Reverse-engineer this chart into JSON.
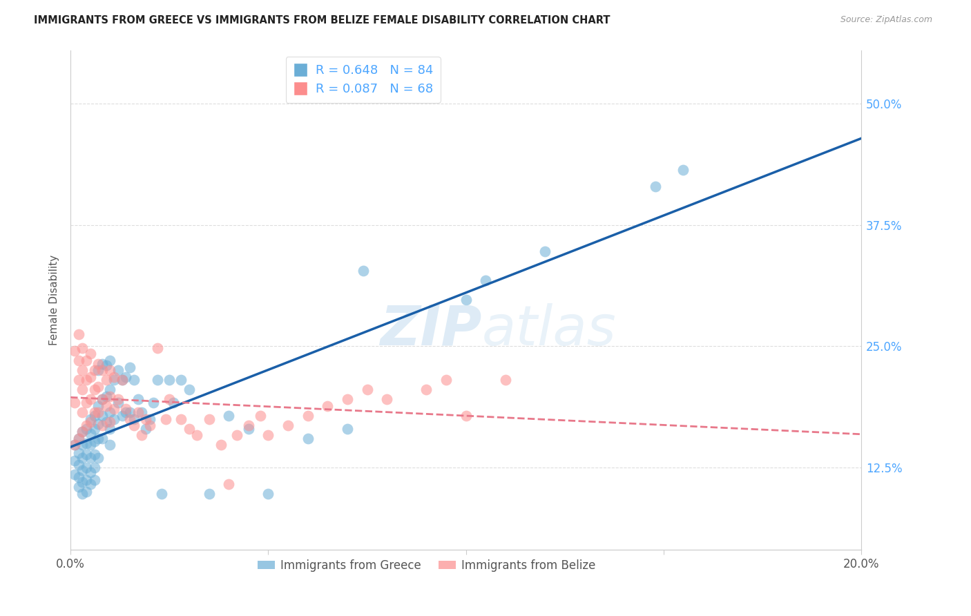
{
  "title": "IMMIGRANTS FROM GREECE VS IMMIGRANTS FROM BELIZE FEMALE DISABILITY CORRELATION CHART",
  "source": "Source: ZipAtlas.com",
  "ylabel": "Female Disability",
  "yticks": [
    "12.5%",
    "25.0%",
    "37.5%",
    "50.0%"
  ],
  "ytick_vals": [
    0.125,
    0.25,
    0.375,
    0.5
  ],
  "xlim": [
    0.0,
    0.2
  ],
  "ylim": [
    0.04,
    0.555
  ],
  "greece_R": 0.648,
  "greece_N": 84,
  "belize_R": 0.087,
  "belize_N": 68,
  "greece_color": "#6baed6",
  "belize_color": "#fc8d8d",
  "greece_line_color": "#1a5fa8",
  "belize_line_color": "#e8788a",
  "watermark_zip": "ZIP",
  "watermark_atlas": "atlas",
  "background_color": "#ffffff",
  "greece_x": [
    0.001,
    0.001,
    0.001,
    0.002,
    0.002,
    0.002,
    0.002,
    0.002,
    0.003,
    0.003,
    0.003,
    0.003,
    0.003,
    0.003,
    0.004,
    0.004,
    0.004,
    0.004,
    0.004,
    0.004,
    0.005,
    0.005,
    0.005,
    0.005,
    0.005,
    0.005,
    0.006,
    0.006,
    0.006,
    0.006,
    0.006,
    0.006,
    0.007,
    0.007,
    0.007,
    0.007,
    0.007,
    0.008,
    0.008,
    0.008,
    0.008,
    0.009,
    0.009,
    0.009,
    0.01,
    0.01,
    0.01,
    0.01,
    0.01,
    0.011,
    0.011,
    0.012,
    0.012,
    0.013,
    0.013,
    0.014,
    0.014,
    0.015,
    0.015,
    0.016,
    0.016,
    0.017,
    0.018,
    0.019,
    0.02,
    0.021,
    0.022,
    0.023,
    0.025,
    0.026,
    0.028,
    0.03,
    0.035,
    0.04,
    0.045,
    0.05,
    0.06,
    0.07,
    0.074,
    0.1,
    0.105,
    0.12,
    0.148,
    0.155
  ],
  "greece_y": [
    0.148,
    0.132,
    0.118,
    0.155,
    0.14,
    0.128,
    0.115,
    0.105,
    0.162,
    0.148,
    0.135,
    0.122,
    0.11,
    0.098,
    0.165,
    0.15,
    0.138,
    0.125,
    0.112,
    0.1,
    0.175,
    0.16,
    0.148,
    0.135,
    0.12,
    0.108,
    0.178,
    0.165,
    0.152,
    0.138,
    0.125,
    0.112,
    0.225,
    0.188,
    0.17,
    0.155,
    0.135,
    0.232,
    0.195,
    0.178,
    0.155,
    0.23,
    0.198,
    0.172,
    0.235,
    0.205,
    0.182,
    0.165,
    0.148,
    0.215,
    0.175,
    0.225,
    0.192,
    0.215,
    0.178,
    0.218,
    0.182,
    0.228,
    0.182,
    0.215,
    0.175,
    0.195,
    0.182,
    0.165,
    0.175,
    0.192,
    0.215,
    0.098,
    0.215,
    0.192,
    0.215,
    0.205,
    0.098,
    0.178,
    0.165,
    0.098,
    0.155,
    0.165,
    0.328,
    0.298,
    0.318,
    0.348,
    0.415,
    0.432
  ],
  "belize_x": [
    0.001,
    0.001,
    0.001,
    0.002,
    0.002,
    0.002,
    0.002,
    0.003,
    0.003,
    0.003,
    0.003,
    0.003,
    0.004,
    0.004,
    0.004,
    0.004,
    0.005,
    0.005,
    0.005,
    0.005,
    0.006,
    0.006,
    0.006,
    0.007,
    0.007,
    0.007,
    0.008,
    0.008,
    0.008,
    0.009,
    0.009,
    0.01,
    0.01,
    0.01,
    0.011,
    0.011,
    0.012,
    0.013,
    0.014,
    0.015,
    0.016,
    0.017,
    0.018,
    0.019,
    0.02,
    0.022,
    0.024,
    0.025,
    0.028,
    0.03,
    0.032,
    0.035,
    0.038,
    0.04,
    0.042,
    0.045,
    0.048,
    0.05,
    0.055,
    0.06,
    0.065,
    0.07,
    0.075,
    0.08,
    0.09,
    0.095,
    0.1,
    0.11
  ],
  "belize_y": [
    0.148,
    0.245,
    0.192,
    0.262,
    0.235,
    0.215,
    0.155,
    0.248,
    0.225,
    0.205,
    0.182,
    0.162,
    0.235,
    0.215,
    0.192,
    0.168,
    0.242,
    0.218,
    0.195,
    0.172,
    0.225,
    0.205,
    0.182,
    0.232,
    0.208,
    0.182,
    0.225,
    0.195,
    0.168,
    0.215,
    0.188,
    0.225,
    0.198,
    0.172,
    0.218,
    0.185,
    0.195,
    0.215,
    0.185,
    0.175,
    0.168,
    0.182,
    0.158,
    0.175,
    0.168,
    0.248,
    0.175,
    0.195,
    0.175,
    0.165,
    0.158,
    0.175,
    0.148,
    0.108,
    0.158,
    0.168,
    0.178,
    0.158,
    0.168,
    0.178,
    0.188,
    0.195,
    0.205,
    0.195,
    0.205,
    0.215,
    0.178,
    0.215
  ]
}
